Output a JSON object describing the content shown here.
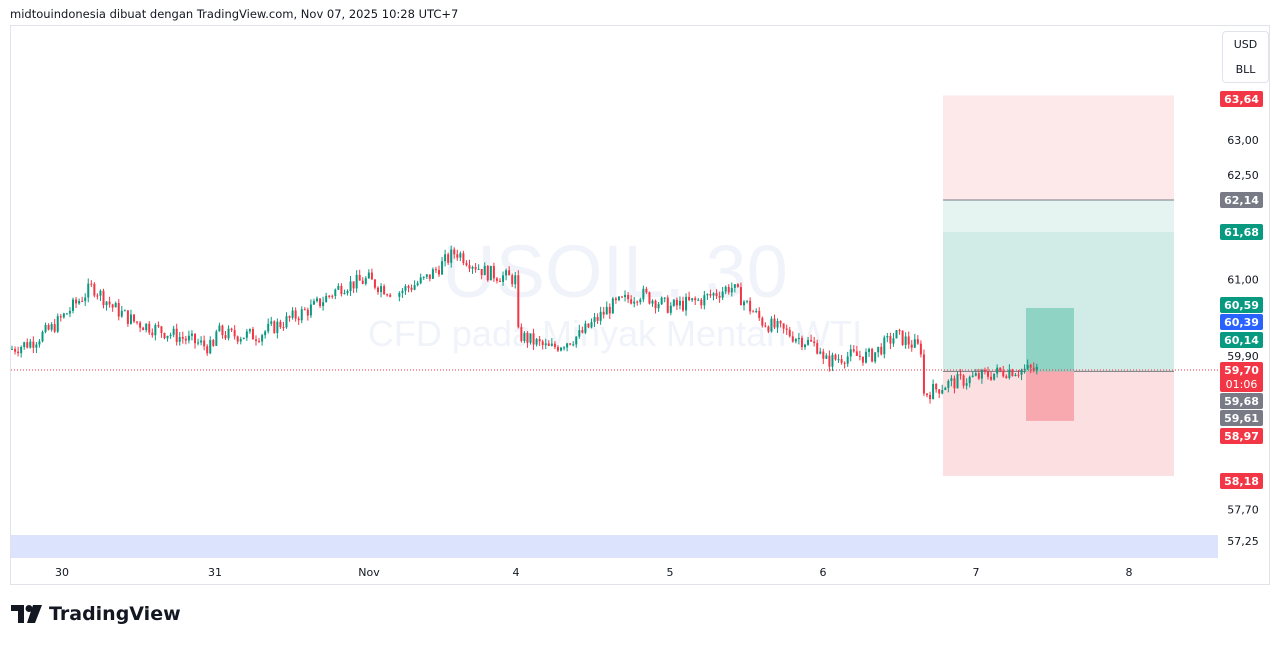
{
  "header": {
    "caption": "midtouindonesia dibuat dengan TradingView.com, Nov 07, 2025 10:28 UTC+7"
  },
  "watermark": {
    "symbol": "USOIL, 30",
    "description": "CFD pada Minyak Mentah WTI"
  },
  "currency": {
    "primary": "USD",
    "secondary": "BLL"
  },
  "footer": {
    "brand": "TradingView",
    "logo_icon": "tradingview-logo-icon"
  },
  "colors": {
    "up": "#089981",
    "down": "#f23645",
    "last_price_line": "#f23645",
    "profit_zone": "#d1ece6",
    "loss_zone": "#fcdfe1",
    "volume_band": "#dbe4fc"
  },
  "chart_data": {
    "type": "candlestick",
    "symbol": "USOIL",
    "interval": "30",
    "x_tick_labels": [
      "30",
      "31",
      "Nov",
      "4",
      "5",
      "6",
      "7",
      "8"
    ],
    "y_tick_labels": [
      "63,00",
      "62,50",
      "61,00",
      "59,90",
      "57,70",
      "57,25"
    ],
    "ylim": [
      57.15,
      64.0
    ],
    "price_tags": [
      {
        "label": "63,64",
        "value": 63.64,
        "color": "#f23645"
      },
      {
        "label": "62,14",
        "value": 62.14,
        "color": "#787b86"
      },
      {
        "label": "61,68",
        "value": 61.68,
        "color": "#089981"
      },
      {
        "label": "60,59",
        "value": 60.59,
        "color": "#089981"
      },
      {
        "label": "60,39",
        "value": 60.39,
        "color": "#2962ff"
      },
      {
        "label": "60,14",
        "value": 60.14,
        "color": "#089981"
      },
      {
        "label": "59,70",
        "value": 59.7,
        "color": "#f23645",
        "countdown": "01:06"
      },
      {
        "label": "59,68",
        "value": 59.68,
        "color": "#787b86"
      },
      {
        "label": "59,61",
        "value": 59.61,
        "color": "#787b86"
      },
      {
        "label": "58,97",
        "value": 58.97,
        "color": "#f23645"
      },
      {
        "label": "58,18",
        "value": 58.18,
        "color": "#f23645"
      }
    ],
    "last_price": 59.7,
    "position_tool": {
      "entry": 59.68,
      "target": 62.14,
      "target_top": 63.64,
      "stop": 58.18,
      "inner_target": 61.68,
      "inner_stop": 59.61
    },
    "small_position_tool": {
      "target": 60.59,
      "entry": 59.68,
      "stop": 58.97
    },
    "approx_close_path": [
      {
        "session": "30",
        "closes": [
          60.1,
          60.3,
          60.6,
          60.9,
          60.6,
          60.4,
          60.3,
          60.2,
          60.1,
          60.0
        ]
      },
      {
        "session": "31",
        "closes": [
          59.9,
          60.3,
          60.6,
          60.4,
          60.3,
          60.2,
          60.2,
          60.4,
          60.6,
          60.9,
          61.0
        ]
      },
      {
        "session": "Nov",
        "closes": [
          61.1,
          61.5,
          61.3,
          61.4,
          61.0,
          60.8,
          61.0,
          61.4,
          61.1,
          61.0
        ]
      },
      {
        "session": "4",
        "closes": [
          61.0,
          60.9,
          60.8,
          60.5,
          60.2,
          60.0,
          60.2,
          60.6,
          60.8,
          60.6
        ]
      },
      {
        "session": "5",
        "closes": [
          60.7,
          60.5,
          60.2,
          60.4,
          60.6,
          60.7,
          60.9,
          60.4,
          60.2,
          60.0
        ]
      },
      {
        "session": "6",
        "closes": [
          59.8,
          59.6,
          59.6,
          59.6,
          59.7,
          59.8,
          59.9,
          59.9,
          60.2,
          60.0
        ]
      },
      {
        "session": "7",
        "closes": [
          59.2,
          59.0,
          59.3,
          59.5,
          59.6,
          59.7,
          59.7
        ]
      }
    ]
  }
}
